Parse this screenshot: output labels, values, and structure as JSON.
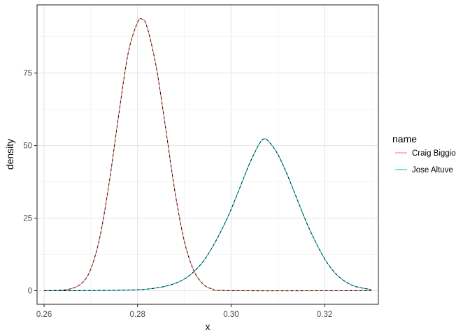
{
  "chart_data": {
    "type": "line",
    "xlabel": "x",
    "ylabel": "density",
    "xlim": [
      0.2585,
      0.3315
    ],
    "ylim": [
      -4.7,
      98.5
    ],
    "x_ticks": [
      0.26,
      0.28,
      0.3,
      0.32
    ],
    "x_tick_labels": [
      "0.26",
      "0.28",
      "0.30",
      "0.32"
    ],
    "y_ticks": [
      0,
      25,
      50,
      75
    ],
    "y_tick_labels": [
      "0",
      "25",
      "50",
      "75"
    ],
    "grid": true,
    "legend": {
      "title": "name",
      "placement": "right",
      "entries": [
        "Craig Biggio",
        "Jose Altuve"
      ]
    },
    "overlay_style": "black dashed line over each colored curve",
    "series": [
      {
        "name": "Craig Biggio",
        "color": "#F8766D",
        "x": [
          0.26,
          0.265,
          0.268,
          0.27,
          0.272,
          0.274,
          0.276,
          0.278,
          0.28,
          0.281,
          0.282,
          0.284,
          0.286,
          0.288,
          0.29,
          0.292,
          0.294,
          0.296,
          0.3,
          0.33
        ],
        "y": [
          0,
          0.4,
          2.5,
          7.5,
          19,
          38,
          61,
          82,
          92.5,
          93.5,
          91,
          77,
          56,
          34,
          17,
          7,
          2.3,
          0.6,
          0,
          0
        ]
      },
      {
        "name": "Jose Altuve",
        "color": "#00BFC4",
        "x": [
          0.26,
          0.27,
          0.28,
          0.285,
          0.288,
          0.29,
          0.292,
          0.294,
          0.296,
          0.298,
          0.3,
          0.302,
          0.304,
          0.306,
          0.307,
          0.308,
          0.31,
          0.312,
          0.314,
          0.316,
          0.318,
          0.32,
          0.322,
          0.324,
          0.326,
          0.328,
          0.33
        ],
        "y": [
          0,
          0.05,
          0.3,
          1.2,
          2.5,
          4,
          6.5,
          10,
          15,
          21,
          28,
          36,
          44,
          50.5,
          52.3,
          51.5,
          47,
          40,
          32,
          24,
          17,
          11,
          6.5,
          3.6,
          1.8,
          0.9,
          0.4
        ]
      }
    ]
  }
}
